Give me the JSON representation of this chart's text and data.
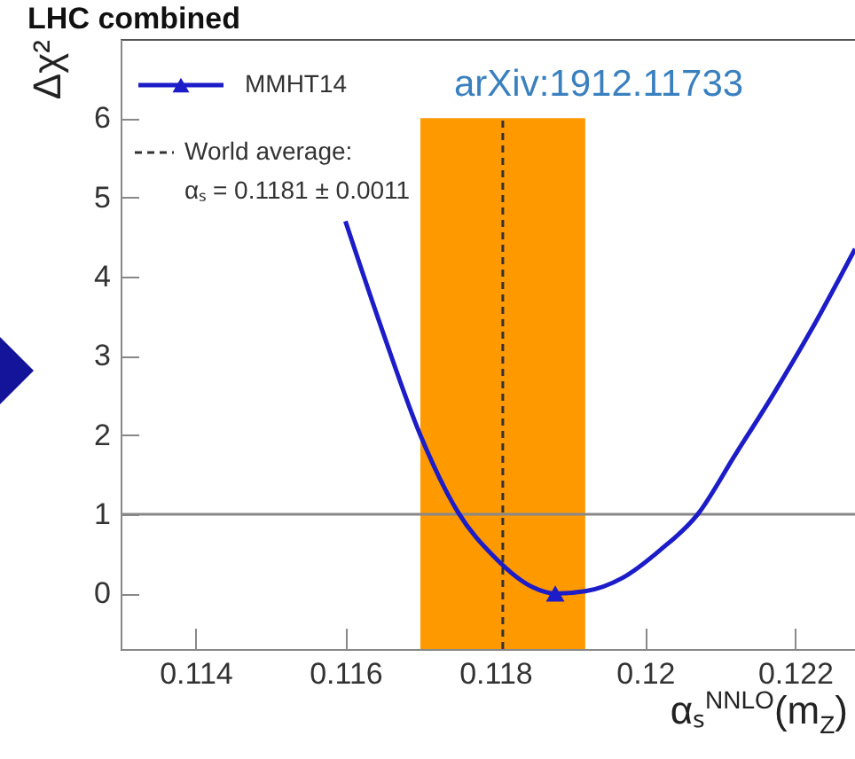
{
  "chart_data": {
    "type": "line",
    "title": "LHC combined",
    "xlabel": "αₛ$^{NNLO}$(m$_{Z}$)",
    "ylabel": "Δχ²",
    "annotations": [
      "arXiv:1912.11733"
    ],
    "series": [
      {
        "name": "MMHT14",
        "color": "#1c1cc8",
        "x": [
          0.116,
          0.1165,
          0.117,
          0.1175,
          0.118,
          0.1185,
          0.1188,
          0.1192,
          0.1197,
          0.1202,
          0.1207,
          0.1212,
          0.1217,
          0.1222,
          0.1228
        ],
        "values": [
          4.7,
          3.3,
          2.0,
          1.03,
          0.45,
          0.08,
          0.0,
          0.03,
          0.2,
          0.55,
          1.0,
          1.75,
          2.5,
          3.3,
          4.35
        ]
      },
      {
        "type": "scatter",
        "marker": "triangle",
        "color": "#1c1cc8",
        "x": [
          0.1188
        ],
        "values": [
          0
        ]
      }
    ],
    "xlim": [
      0.113,
      0.1228
    ],
    "xticks": [
      0.114,
      0.116,
      0.118,
      0.12,
      0.122
    ],
    "ylim": [
      -0.7,
      7.0
    ],
    "yticks": [
      0,
      1,
      2,
      3,
      4,
      5,
      6
    ],
    "ref_lines": [
      {
        "axis": "x",
        "value": 0.1181,
        "label": "World average:\nαₛ = 0.1181 ± 0.0011",
        "color": "#333333",
        "line_style": "dashed"
      },
      {
        "axis": "y",
        "value": 1,
        "color": "#888888",
        "line_style": "solid"
      }
    ],
    "bands": [
      {
        "axis": "x",
        "from": 0.117,
        "to": 0.1192,
        "color": "#ff9900"
      }
    ],
    "legend": "top left",
    "grid": false
  }
}
